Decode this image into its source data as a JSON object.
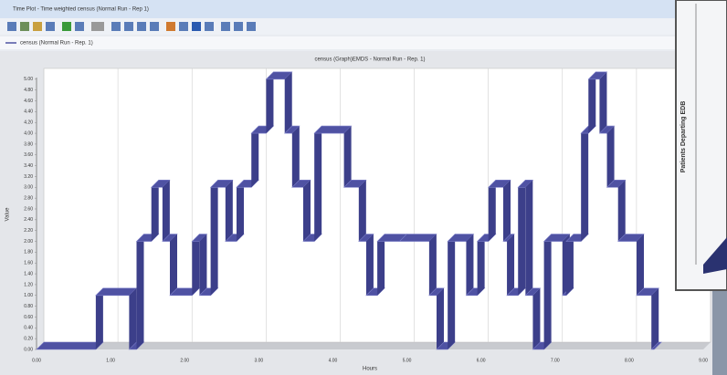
{
  "window": {
    "title": "Time Plot - Time weighted census (Normal Run - Rep 1)",
    "tab": "census (Normal Run - Rep. 1)"
  },
  "side_window": {
    "axis_label": "Patients Departing EDB"
  },
  "chart_data": {
    "type": "step",
    "title": "census (Graph)EMDS - Normal Run - Rep. 1)",
    "x_label": "Hours",
    "y_label": "Value",
    "color": "#4f52a3",
    "grid": true,
    "x": [
      0,
      0.8,
      1.25,
      1.35,
      1.55,
      1.7,
      1.8,
      2.1,
      2.2,
      2.35,
      2.55,
      2.7,
      2.9,
      3.1,
      3.35,
      3.45,
      3.6,
      3.75,
      4.15,
      4.35,
      4.45,
      4.6,
      4.9,
      5.3,
      5.4,
      5.55,
      5.8,
      5.95,
      6.1,
      6.3,
      6.35,
      6.5,
      6.6,
      6.7,
      6.85,
      7.1,
      7.15,
      7.35,
      7.45,
      7.6,
      7.7,
      7.85,
      8.1,
      8.3
    ],
    "values": [
      0,
      1,
      0,
      2,
      3,
      2,
      1,
      2,
      1,
      3,
      2,
      3,
      4,
      5,
      4,
      3,
      2,
      4,
      3,
      2,
      1,
      2,
      2,
      1,
      0,
      2,
      1,
      2,
      3,
      2,
      1,
      3,
      1,
      0,
      2,
      1,
      2,
      4,
      5,
      4,
      3,
      2,
      1,
      0
    ],
    "xlim": [
      0,
      9
    ],
    "ylim": [
      0,
      5.2
    ],
    "xticks": [
      {
        "value": 0,
        "label": "0.00"
      },
      {
        "value": 1,
        "label": "1.00"
      },
      {
        "value": 2,
        "label": "2.00"
      },
      {
        "value": 3,
        "label": "3.00"
      },
      {
        "value": 4,
        "label": "4.00"
      },
      {
        "value": 5,
        "label": "5.00"
      },
      {
        "value": 6,
        "label": "6.00"
      },
      {
        "value": 7,
        "label": "7.00"
      },
      {
        "value": 8,
        "label": "8.00"
      },
      {
        "value": 9,
        "label": "9.00"
      }
    ],
    "yticks": [
      {
        "value": 0,
        "label": "0.00"
      },
      {
        "value": 0.2,
        "label": "0.20"
      },
      {
        "value": 0.4,
        "label": "0.40"
      },
      {
        "value": 0.6,
        "label": "0.60"
      },
      {
        "value": 0.8,
        "label": "0.80"
      },
      {
        "value": 1,
        "label": "1.00"
      },
      {
        "value": 1.2,
        "label": "1.20"
      },
      {
        "value": 1.4,
        "label": "1.40"
      },
      {
        "value": 1.6,
        "label": "1.60"
      },
      {
        "value": 1.8,
        "label": "1.80"
      },
      {
        "value": 2,
        "label": "2.00"
      },
      {
        "value": 2.2,
        "label": "2.20"
      },
      {
        "value": 2.4,
        "label": "2.40"
      },
      {
        "value": 2.6,
        "label": "2.60"
      },
      {
        "value": 2.8,
        "label": "2.80"
      },
      {
        "value": 3,
        "label": "3.00"
      },
      {
        "value": 3.2,
        "label": "3.20"
      },
      {
        "value": 3.4,
        "label": "3.40"
      },
      {
        "value": 3.6,
        "label": "3.60"
      },
      {
        "value": 3.8,
        "label": "3.80"
      },
      {
        "value": 4,
        "label": "4.00"
      },
      {
        "value": 4.2,
        "label": "4.20"
      },
      {
        "value": 4.4,
        "label": "4.40"
      },
      {
        "value": 4.6,
        "label": "4.60"
      },
      {
        "value": 4.8,
        "label": "4.80"
      },
      {
        "value": 5,
        "label": "5.00"
      }
    ]
  }
}
